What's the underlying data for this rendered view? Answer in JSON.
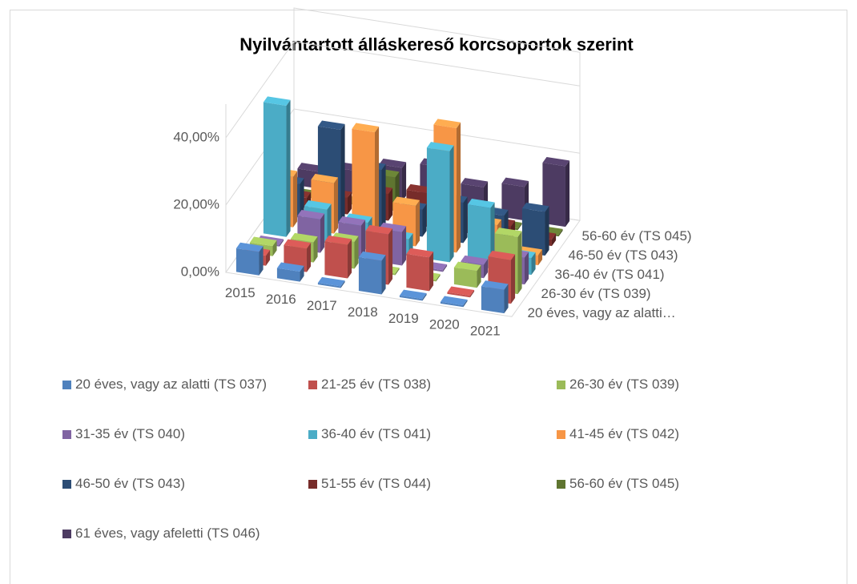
{
  "chart_data": {
    "type": "bar3d",
    "title": "Nyilvántartott álláskereső korcsoportok szerint",
    "categories": [
      "2015",
      "2016",
      "2017",
      "2018",
      "2019",
      "2020",
      "2021"
    ],
    "depth_categories": [
      "20 éves, vagy az alatti…",
      null,
      "26-30 év (TS 039)",
      null,
      "36-40 év (TS 041)",
      null,
      "46-50 év (TS 043)",
      null,
      "56-60 év (TS 045)",
      null
    ],
    "ylim": [
      0,
      40
    ],
    "yticks": [
      {
        "value": 0,
        "label": "0,00%"
      },
      {
        "value": 20,
        "label": "20,00%"
      },
      {
        "value": 40,
        "label": "40,00%"
      }
    ],
    "grid": true,
    "legend": "bottom",
    "series": [
      {
        "name": "20 éves, vagy az alatti (TS 037)",
        "color": "#4f81bd",
        "values": [
          7,
          3,
          0.5,
          10,
          0.5,
          0.5,
          7
        ]
      },
      {
        "name": "21-25 év (TS 038)",
        "color": "#c0504d",
        "values": [
          3,
          7,
          10,
          15,
          10,
          0.5,
          13
        ]
      },
      {
        "name": "26-30 év (TS 039)",
        "color": "#9bbb59",
        "values": [
          3,
          6,
          8,
          0.5,
          0.5,
          5,
          17
        ]
      },
      {
        "name": "31-35 év (TS 040)",
        "color": "#8064a2",
        "values": [
          0.5,
          10,
          10,
          10,
          0.5,
          4,
          8
        ]
      },
      {
        "name": "36-40 év (TS 041)",
        "color": "#4bacc6",
        "values": [
          39,
          10,
          8,
          5,
          33,
          18,
          5
        ]
      },
      {
        "name": "41-45 év (TS 042)",
        "color": "#f79646",
        "values": [
          15,
          15,
          32,
          12,
          37,
          10,
          3
        ]
      },
      {
        "name": "46-50 év (TS 043)",
        "color": "#2c4d75",
        "values": [
          10,
          28,
          18,
          8,
          12,
          10,
          13
        ]
      },
      {
        "name": "51-55 év (TS 044)",
        "color": "#772c2a",
        "values": [
          3,
          5,
          8,
          10,
          5,
          4,
          2
        ]
      },
      {
        "name": "56-60 év (TS 045)",
        "color": "#5f7530",
        "values": [
          0.5,
          0.5,
          10,
          0.5,
          0.5,
          0.5,
          0.5
        ]
      },
      {
        "name": "61 éves, vagy afeletti (TS 046)",
        "color": "#4d3b62",
        "values": [
          5,
          7,
          10,
          12,
          8,
          10,
          18
        ]
      }
    ]
  }
}
